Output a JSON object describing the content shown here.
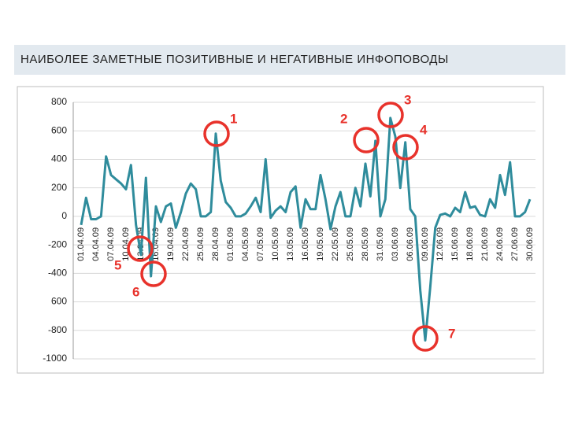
{
  "chart_data": {
    "type": "line",
    "title": "НАИБОЛЕЕ ЗАМЕТНЫЕ ПОЗИТИВНЫЕ И НЕГАТИВНЫЕ ИНФОПОВОДЫ",
    "categories": [
      "01.04.09",
      null,
      null,
      "04.04.09",
      null,
      null,
      "07.04.09",
      null,
      null,
      "10.04.09",
      null,
      null,
      "13.04.09",
      null,
      null,
      "16.04.09",
      null,
      null,
      "19.04.09",
      null,
      null,
      "22.04.09",
      null,
      null,
      "25.04.09",
      null,
      null,
      "28.04.09",
      null,
      null,
      "01.05.09",
      null,
      null,
      "04.05.09",
      null,
      null,
      "07.05.09",
      null,
      null,
      "10.05.09",
      null,
      null,
      "13.05.09",
      null,
      null,
      "16.05.09",
      null,
      null,
      "19.05.09",
      null,
      null,
      "22.05.09",
      null,
      null,
      "25.05.09",
      null,
      null,
      "28.05.09",
      null,
      null,
      "31.05.09",
      null,
      null,
      "03.06.09",
      null,
      null,
      "06.06.09",
      null,
      null,
      "09.06.09",
      null,
      null,
      "12.06.09",
      null,
      null,
      "15.06.09",
      null,
      null,
      "18.06.09",
      null,
      null,
      "21.06.09",
      null,
      null,
      "24.06.09",
      null,
      null,
      "27.06.09",
      null,
      null,
      "30.06.09"
    ],
    "values": [
      -60,
      130,
      -20,
      -20,
      0,
      420,
      290,
      260,
      230,
      190,
      360,
      -60,
      -270,
      270,
      -420,
      70,
      -40,
      70,
      90,
      -80,
      30,
      160,
      230,
      190,
      0,
      0,
      30,
      580,
      250,
      100,
      60,
      0,
      0,
      20,
      70,
      130,
      30,
      400,
      -10,
      40,
      70,
      30,
      170,
      210,
      -80,
      120,
      50,
      50,
      290,
      120,
      -90,
      70,
      170,
      0,
      0,
      200,
      70,
      370,
      140,
      530,
      0,
      120,
      690,
      560,
      200,
      520,
      50,
      0,
      -520,
      -870,
      -500,
      -80,
      10,
      20,
      0,
      60,
      30,
      170,
      60,
      70,
      10,
      0,
      120,
      60,
      290,
      150,
      380,
      0,
      0,
      30,
      120
    ],
    "color": "#2f8c9c",
    "ylim": [
      -1000,
      800
    ],
    "yticks": [
      -1000,
      -800,
      {
        "value": -600,
        "label": "600"
      },
      -400,
      -200,
      0,
      200,
      400,
      600,
      800
    ],
    "grid": true,
    "annotations": [
      "1",
      "2",
      "3",
      "4",
      "5",
      "6",
      "7"
    ]
  }
}
